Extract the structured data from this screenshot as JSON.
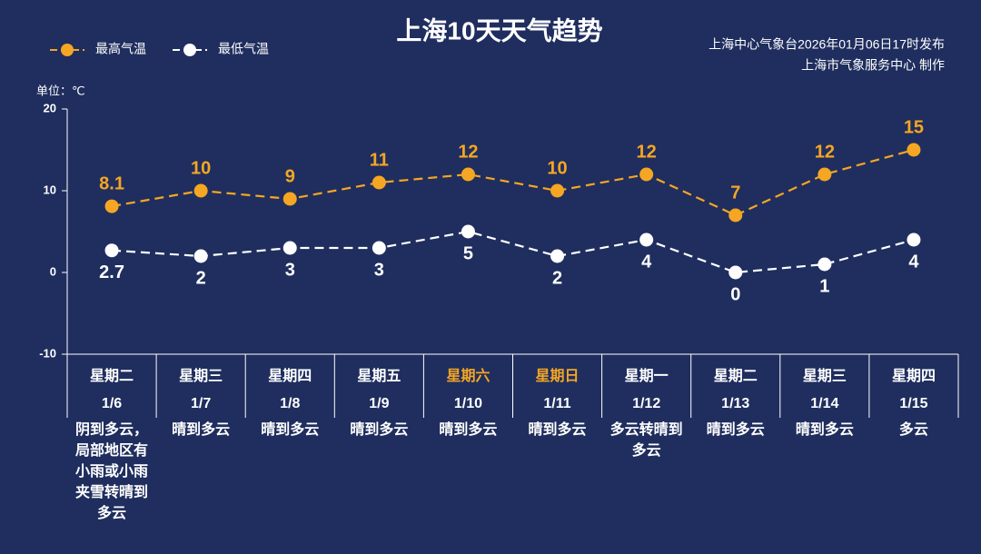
{
  "chart_data": {
    "type": "line",
    "title": "上海10天天气趋势",
    "source": [
      "上海中心气象台2026年01月06日17时发布",
      "上海市气象服务中心  制作"
    ],
    "unit_label": "单位：℃",
    "legend": "top-left",
    "categories": [
      "1/6",
      "1/7",
      "1/8",
      "1/9",
      "1/10",
      "1/11",
      "1/12",
      "1/13",
      "1/14",
      "1/15"
    ],
    "weekdays": [
      "星期二",
      "星期三",
      "星期四",
      "星期五",
      "星期六",
      "星期日",
      "星期一",
      "星期二",
      "星期三",
      "星期四"
    ],
    "weekday_colors": [
      "#ffffff",
      "#ffffff",
      "#ffffff",
      "#ffffff",
      "#f5a623",
      "#f5a623",
      "#ffffff",
      "#ffffff",
      "#ffffff",
      "#ffffff"
    ],
    "weather": [
      "阴到多云，局部地区有小雨或小雨夹雪转晴到多云",
      "晴到多云",
      "晴到多云",
      "晴到多云",
      "晴到多云",
      "晴到多云",
      "多云转晴到多云",
      "晴到多云",
      "晴到多云",
      "多云"
    ],
    "series": [
      {
        "name": "最高气温",
        "color": "#f5a623",
        "values": [
          8.1,
          10,
          9,
          11,
          12,
          10,
          12,
          7,
          12,
          15
        ]
      },
      {
        "name": "最低气温",
        "color": "#ffffff",
        "values": [
          2.7,
          2,
          3,
          3,
          5,
          2,
          4,
          0,
          1,
          4
        ]
      }
    ],
    "ylim": [
      -10,
      20
    ],
    "yticks": [
      -10,
      0,
      10,
      20
    ]
  }
}
